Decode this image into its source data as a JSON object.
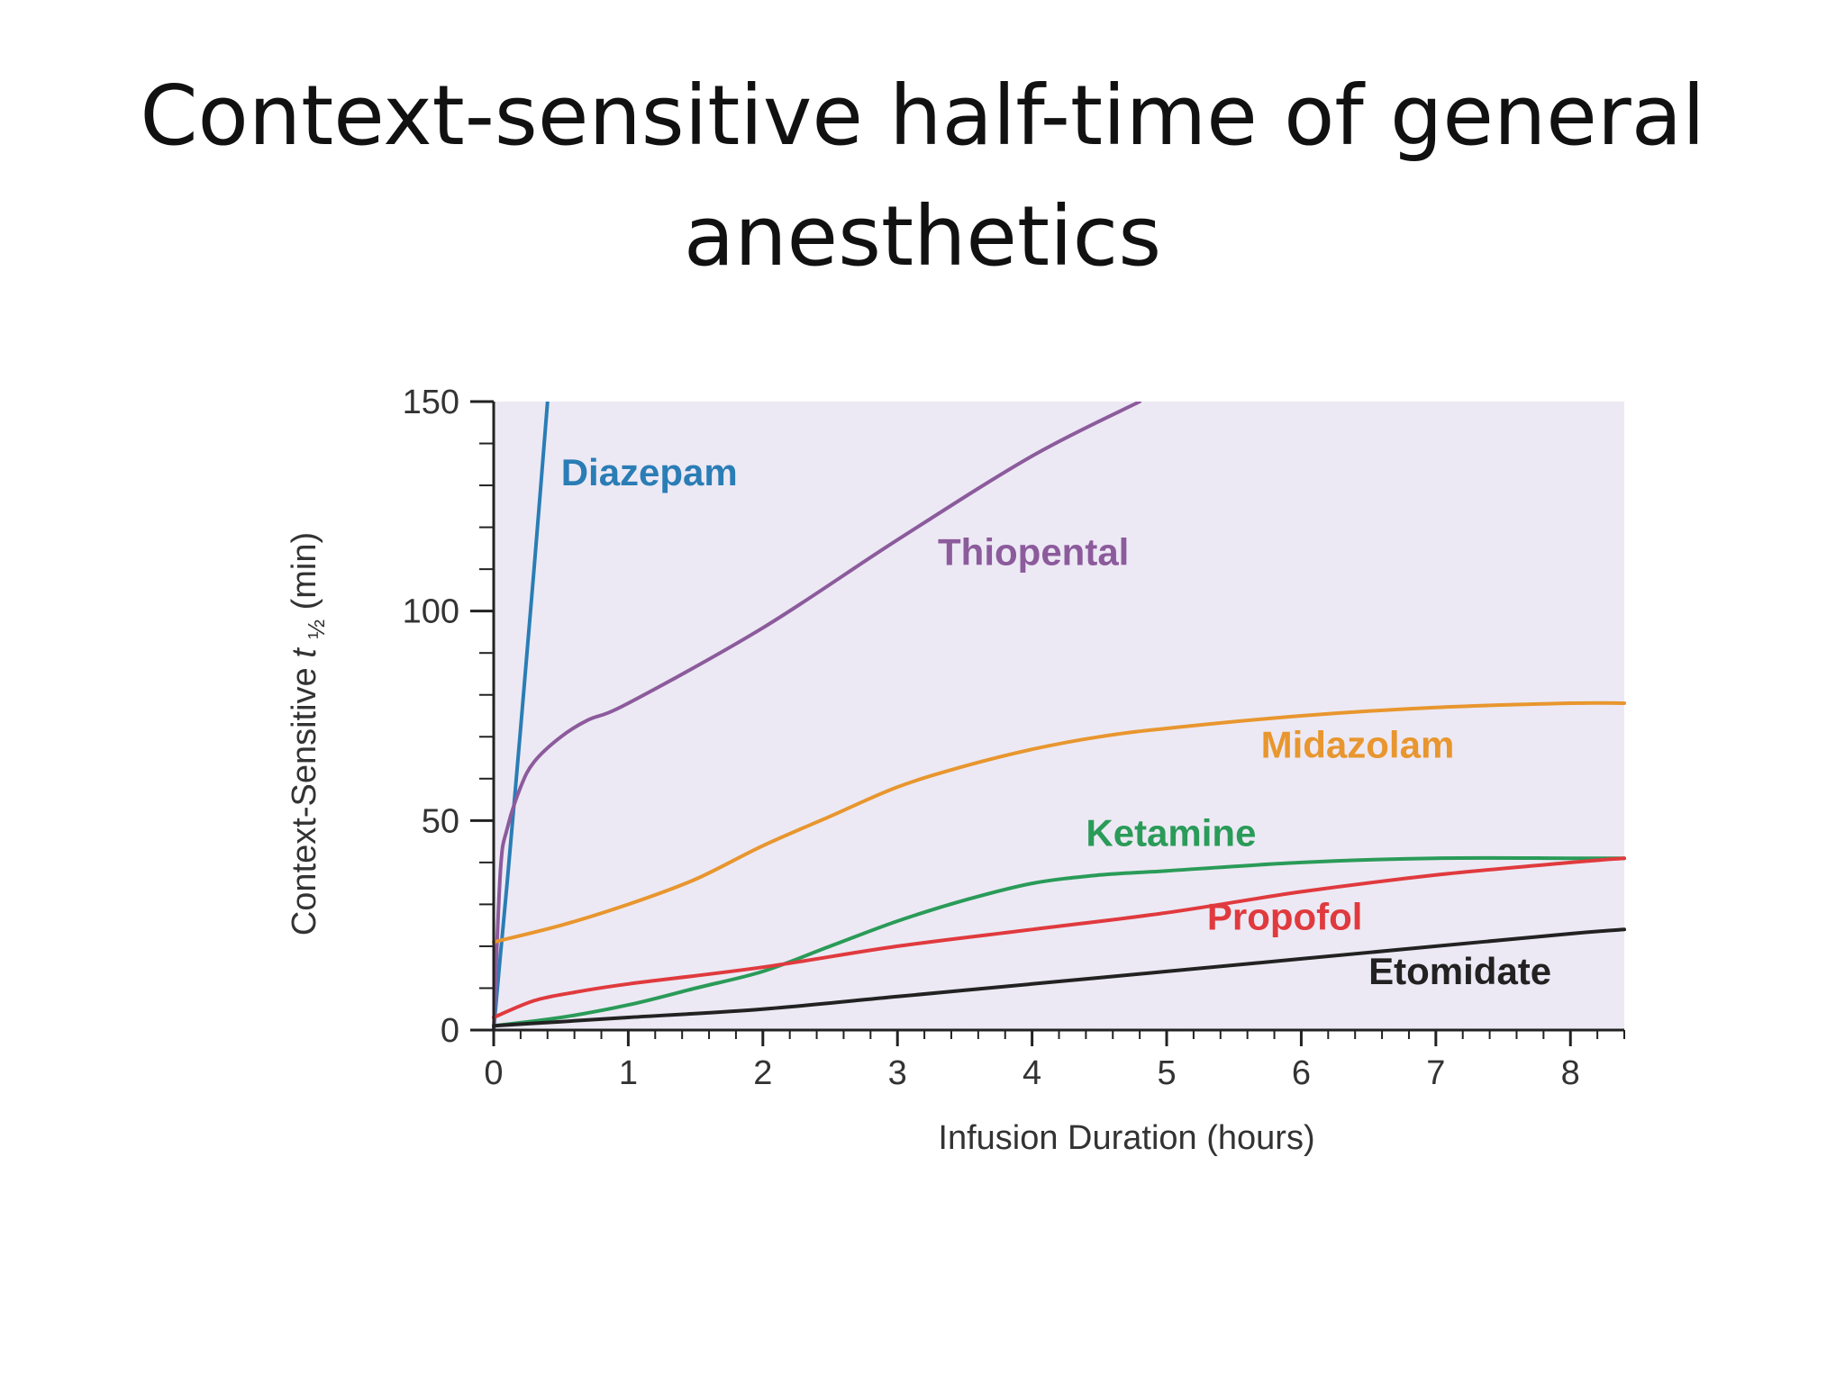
{
  "slide": {
    "title_line1": "Context-sensitive half-time of general",
    "title_line2": "anesthetics"
  },
  "chart_data": {
    "type": "line",
    "title": "",
    "xlabel": "Infusion Duration (hours)",
    "ylabel": "Context-Sensitive t½ (min)",
    "ylabel_parts": {
      "prefix": "Context-Sensitive ",
      "symbol": "t",
      "subscript": "½",
      "suffix": " (min)"
    },
    "xlim": [
      0,
      8.4
    ],
    "ylim": [
      0,
      150
    ],
    "xticks": [
      0,
      1,
      2,
      3,
      4,
      5,
      6,
      7,
      8
    ],
    "yticks": [
      0,
      50,
      100,
      150
    ],
    "grid": false,
    "legend": "labels placed next to lines",
    "plot_background": "#ece9f4",
    "series": [
      {
        "name": "Diazepam",
        "color": "#2a7db5",
        "points": [
          [
            0,
            0
          ],
          [
            0.05,
            18
          ],
          [
            0.1,
            35
          ],
          [
            0.2,
            72
          ],
          [
            0.3,
            110
          ],
          [
            0.4,
            150
          ]
        ]
      },
      {
        "name": "Thiopental",
        "color": "#8c5b9c",
        "points": [
          [
            0,
            0
          ],
          [
            0.05,
            38
          ],
          [
            0.1,
            48
          ],
          [
            0.2,
            58
          ],
          [
            0.3,
            64
          ],
          [
            0.5,
            70
          ],
          [
            0.7,
            74
          ],
          [
            1,
            78
          ],
          [
            2,
            96
          ],
          [
            3,
            117
          ],
          [
            4,
            137
          ],
          [
            4.8,
            150
          ]
        ]
      },
      {
        "name": "Midazolam",
        "color": "#e8962e",
        "points": [
          [
            0,
            21
          ],
          [
            0.5,
            25
          ],
          [
            1,
            30
          ],
          [
            1.5,
            36
          ],
          [
            2,
            44
          ],
          [
            2.5,
            51
          ],
          [
            3,
            58
          ],
          [
            3.5,
            63
          ],
          [
            4,
            67
          ],
          [
            4.5,
            70
          ],
          [
            5,
            72
          ],
          [
            6,
            75
          ],
          [
            7,
            77
          ],
          [
            8,
            78
          ],
          [
            8.4,
            78
          ]
        ]
      },
      {
        "name": "Ketamine",
        "color": "#2a9b58",
        "points": [
          [
            0,
            1
          ],
          [
            0.5,
            3
          ],
          [
            1,
            6
          ],
          [
            1.5,
            10
          ],
          [
            2,
            14
          ],
          [
            2.5,
            20
          ],
          [
            3,
            26
          ],
          [
            3.5,
            31
          ],
          [
            4,
            35
          ],
          [
            4.5,
            37
          ],
          [
            5,
            38
          ],
          [
            6,
            40
          ],
          [
            7,
            41
          ],
          [
            8,
            41
          ],
          [
            8.4,
            41
          ]
        ]
      },
      {
        "name": "Propofol",
        "color": "#e03a3e",
        "points": [
          [
            0,
            3
          ],
          [
            0.3,
            7
          ],
          [
            0.6,
            9
          ],
          [
            1,
            11
          ],
          [
            2,
            15
          ],
          [
            3,
            20
          ],
          [
            4,
            24
          ],
          [
            5,
            28
          ],
          [
            6,
            33
          ],
          [
            7,
            37
          ],
          [
            8,
            40
          ],
          [
            8.4,
            41
          ]
        ]
      },
      {
        "name": "Etomidate",
        "color": "#222222",
        "points": [
          [
            0,
            1
          ],
          [
            0.5,
            2
          ],
          [
            1,
            3
          ],
          [
            2,
            5
          ],
          [
            3,
            8
          ],
          [
            4,
            11
          ],
          [
            5,
            14
          ],
          [
            6,
            17
          ],
          [
            7,
            20
          ],
          [
            8,
            23
          ],
          [
            8.4,
            24
          ]
        ]
      }
    ],
    "annotations": [
      {
        "series": "Diazepam",
        "text": "Diazepam",
        "x": 0.5,
        "y": 130
      },
      {
        "series": "Thiopental",
        "text": "Thiopental",
        "x": 3.3,
        "y": 111
      },
      {
        "series": "Midazolam",
        "text": "Midazolam",
        "x": 5.7,
        "y": 65
      },
      {
        "series": "Ketamine",
        "text": "Ketamine",
        "x": 4.4,
        "y": 44
      },
      {
        "series": "Propofol",
        "text": "Propofol",
        "x": 5.3,
        "y": 24
      },
      {
        "series": "Etomidate",
        "text": "Etomidate",
        "x": 6.5,
        "y": 11
      }
    ]
  }
}
